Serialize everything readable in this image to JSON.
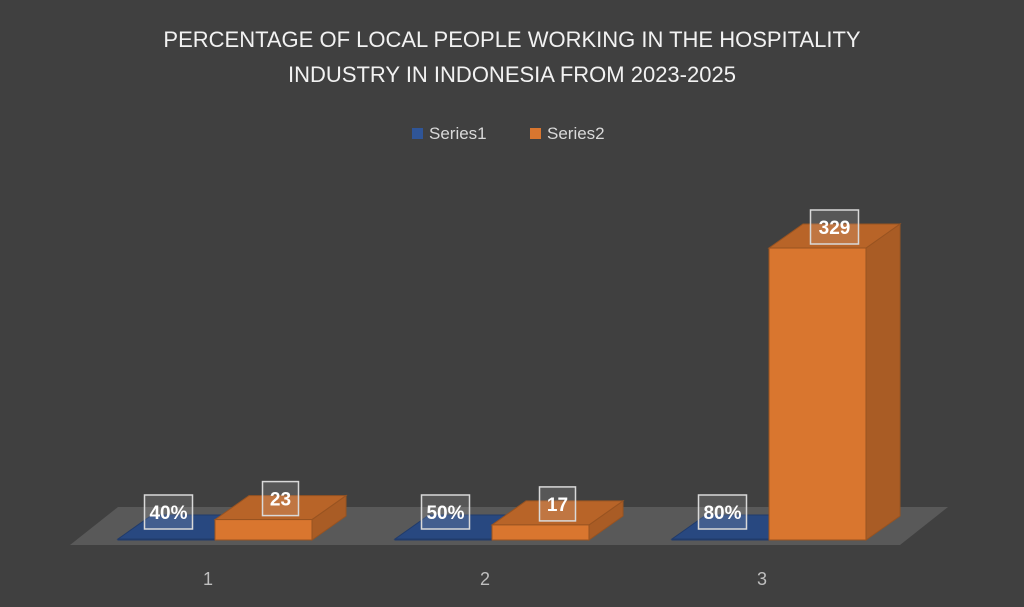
{
  "chart_data": {
    "type": "bar",
    "style": "3d-clustered-column",
    "title_lines": [
      "PERCENTAGE OF LOCAL PEOPLE WORKING IN THE HOSPITALITY",
      "INDUSTRY IN INDONESIA FROM 2023-2025"
    ],
    "categories": [
      "1",
      "2",
      "3"
    ],
    "series": [
      {
        "name": "Series1",
        "values": [
          0.4,
          0.5,
          0.8
        ],
        "labels": [
          "40%",
          "50%",
          "80%"
        ],
        "color": "#2f5597"
      },
      {
        "name": "Series2",
        "values": [
          23,
          17,
          329
        ],
        "labels": [
          "23",
          "17",
          "329"
        ],
        "color": "#d9762f"
      }
    ],
    "xlabel": "",
    "ylabel": "",
    "ylim": [
      0,
      329
    ],
    "grid": false,
    "legend_position": "top",
    "background": "#404040"
  }
}
